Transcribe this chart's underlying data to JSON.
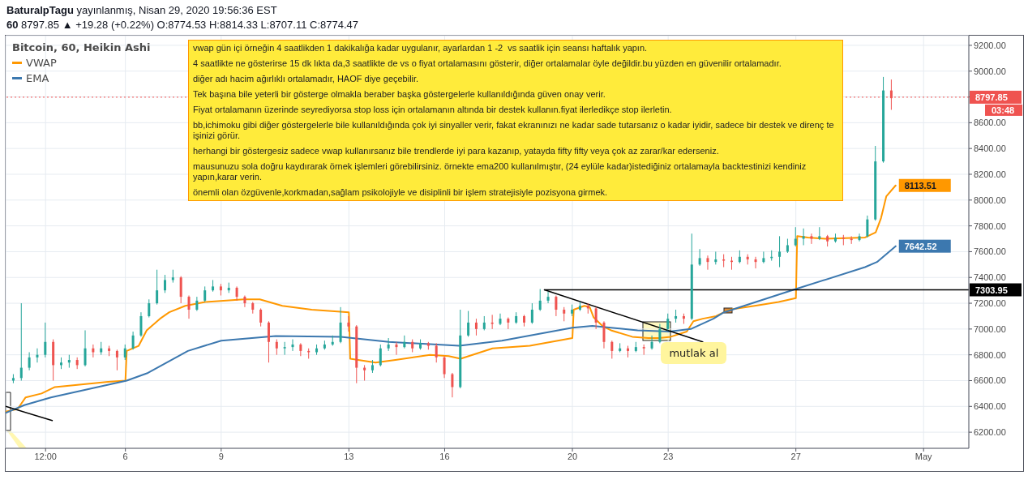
{
  "chart_data": {
    "type": "candlestick",
    "title": "Bitcoin, 60, Heikin Ashi",
    "annotations": [
      "BaturalpTagu yayınlanmış, Nisan 29, 2020 19:56:36 EST",
      "60 8797.85 ▲ +19.28 (+0.22%) O:8774.53 H:8814.33 L:8707.11 C:8774.47",
      "vwap gün içi örneğin 4 saatlikden 1 dakikalığa kadar uygulanır, ayarlardan 1 -2  vs saatlik için seansı haftalık yapın.",
      "4 saatlikte ne gösterirse 15 dk lıkta da,3 saatlikte de vs o fiyat ortalamasını gösterir, diğer ortalamalar öyle değildir.bu yüzden en güvenilir ortalamadır.",
      "diğer adı hacim ağırlıklı ortalamadır, HAOF diye geçebilir.",
      "Tek başına bile yeterli bir gösterge olmakla beraber başka göstergelerle kullanıldığında güven onay verir.",
      "Fiyat ortalamanın üzerinde seyrediyorsa stop loss için ortalamanın altında bir destek kullanın.fiyat ilerledikçe stop ilerletin.",
      "bb,ichimoku gibi diğer göstergelerle bile kullanıldığında çok iyi sinyaller verir, fakat ekranınızı ne kadar sade tutarsanız o kadar iyidir, sadece bir destek ve direnç te işinizi görür.",
      "herhangi bir göstergesiz sadece vwap kullanırsanız bile trendlerde iyi para kazanıp, yatayda fifty fifty veya çok az zarar/kar ederseniz.",
      "mausunuzu sola doğru kaydırarak örnek işlemleri görebilirsiniz. örnekte ema200 kullanılmıştır, (24 eylüle kadar)istediğiniz ortalamayla backtestinizi kendiniz yapın,karar verin.",
      "önemli olan özgüvenle,korkmadan,sağlam psikolojiyle ve disiplinli bir işlem stratejisiyle pozisyona girmek.",
      "03:48",
      {
        "text": "mutlak al",
        "x": "2020-04-23T02:00",
        "y": 6910
      }
    ],
    "x": [
      "2020-04-02T12:00",
      "2020-04-02T18:00",
      "2020-04-03T00:00",
      "2020-04-03T06:00",
      "2020-04-03T12:00",
      "2020-04-03T18:00",
      "2020-04-04T00:00",
      "2020-04-04T06:00",
      "2020-04-04T12:00",
      "2020-04-04T18:00",
      "2020-04-05T00:00",
      "2020-04-05T06:00",
      "2020-04-05T12:00",
      "2020-04-05T18:00",
      "2020-04-06T00:00",
      "2020-04-06T06:00",
      "2020-04-06T12:00",
      "2020-04-06T18:00",
      "2020-04-07T00:00",
      "2020-04-07T06:00",
      "2020-04-07T12:00",
      "2020-04-07T18:00",
      "2020-04-08T00:00",
      "2020-04-08T06:00",
      "2020-04-08T12:00",
      "2020-04-08T18:00",
      "2020-04-09T00:00",
      "2020-04-09T06:00",
      "2020-04-09T12:00",
      "2020-04-09T18:00",
      "2020-04-10T00:00",
      "2020-04-10T06:00",
      "2020-04-10T12:00",
      "2020-04-10T18:00",
      "2020-04-11T00:00",
      "2020-04-11T06:00",
      "2020-04-11T12:00",
      "2020-04-11T18:00",
      "2020-04-12T00:00",
      "2020-04-12T06:00",
      "2020-04-12T12:00",
      "2020-04-12T18:00",
      "2020-04-13T00:00",
      "2020-04-13T06:00",
      "2020-04-13T12:00",
      "2020-04-13T18:00",
      "2020-04-14T00:00",
      "2020-04-14T06:00",
      "2020-04-14T12:00",
      "2020-04-14T18:00",
      "2020-04-15T00:00",
      "2020-04-15T06:00",
      "2020-04-15T12:00",
      "2020-04-15T18:00",
      "2020-04-16T00:00",
      "2020-04-16T06:00",
      "2020-04-16T12:00",
      "2020-04-16T18:00",
      "2020-04-17T00:00",
      "2020-04-17T06:00",
      "2020-04-17T12:00",
      "2020-04-17T18:00",
      "2020-04-18T00:00",
      "2020-04-18T06:00",
      "2020-04-18T12:00",
      "2020-04-18T18:00",
      "2020-04-19T00:00",
      "2020-04-19T06:00",
      "2020-04-19T12:00",
      "2020-04-19T18:00",
      "2020-04-20T00:00",
      "2020-04-20T06:00",
      "2020-04-20T12:00",
      "2020-04-20T18:00",
      "2020-04-21T00:00",
      "2020-04-21T06:00",
      "2020-04-21T12:00",
      "2020-04-21T18:00",
      "2020-04-22T00:00",
      "2020-04-22T06:00",
      "2020-04-22T12:00",
      "2020-04-22T18:00",
      "2020-04-23T00:00",
      "2020-04-23T06:00",
      "2020-04-23T12:00",
      "2020-04-23T18:00",
      "2020-04-24T00:00",
      "2020-04-24T06:00",
      "2020-04-24T12:00",
      "2020-04-24T18:00",
      "2020-04-25T00:00",
      "2020-04-25T06:00",
      "2020-04-25T12:00",
      "2020-04-25T18:00",
      "2020-04-26T00:00",
      "2020-04-26T06:00",
      "2020-04-26T12:00",
      "2020-04-26T18:00",
      "2020-04-27T00:00",
      "2020-04-27T06:00",
      "2020-04-27T12:00",
      "2020-04-27T18:00",
      "2020-04-28T00:00",
      "2020-04-28T06:00",
      "2020-04-28T12:00",
      "2020-04-28T18:00",
      "2020-04-29T00:00",
      "2020-04-29T06:00",
      "2020-04-29T12:00",
      "2020-04-29T18:00",
      "2020-04-30T00:00"
    ],
    "ohlc": [
      [
        6600,
        6650,
        6580,
        6620
      ],
      [
        6620,
        7200,
        6600,
        6700
      ],
      [
        6700,
        6820,
        6680,
        6780
      ],
      [
        6780,
        6850,
        6740,
        6800
      ],
      [
        6800,
        7050,
        6780,
        6900
      ],
      [
        6900,
        6920,
        6600,
        6720
      ],
      [
        6720,
        6780,
        6690,
        6740
      ],
      [
        6740,
        6800,
        6700,
        6760
      ],
      [
        6760,
        6780,
        6690,
        6720
      ],
      [
        6720,
        6990,
        6710,
        6850
      ],
      [
        6850,
        6880,
        6780,
        6820
      ],
      [
        6820,
        6900,
        6800,
        6850
      ],
      [
        6850,
        6870,
        6790,
        6830
      ],
      [
        6830,
        6840,
        6680,
        6780
      ],
      [
        6780,
        6880,
        6760,
        6850
      ],
      [
        6850,
        6980,
        6840,
        6950
      ],
      [
        6950,
        7130,
        6940,
        7100
      ],
      [
        7100,
        7230,
        7090,
        7200
      ],
      [
        7200,
        7460,
        7190,
        7300
      ],
      [
        7300,
        7420,
        7280,
        7380
      ],
      [
        7380,
        7460,
        7360,
        7400
      ],
      [
        7400,
        7410,
        7200,
        7250
      ],
      [
        7250,
        7260,
        7080,
        7150
      ],
      [
        7150,
        7250,
        7140,
        7220
      ],
      [
        7220,
        7330,
        7210,
        7300
      ],
      [
        7300,
        7380,
        7290,
        7330
      ],
      [
        7330,
        7350,
        7260,
        7300
      ],
      [
        7300,
        7360,
        7280,
        7320
      ],
      [
        7320,
        7330,
        7220,
        7250
      ],
      [
        7250,
        7260,
        7170,
        7200
      ],
      [
        7200,
        7210,
        7120,
        7150
      ],
      [
        7150,
        7160,
        7020,
        7050
      ],
      [
        7050,
        7060,
        6740,
        6900
      ],
      [
        6900,
        6920,
        6800,
        6850
      ],
      [
        6850,
        6900,
        6800,
        6860
      ],
      [
        6860,
        6920,
        6830,
        6880
      ],
      [
        6880,
        6890,
        6790,
        6830
      ],
      [
        6830,
        6850,
        6770,
        6820
      ],
      [
        6820,
        6880,
        6800,
        6850
      ],
      [
        6850,
        6910,
        6840,
        6880
      ],
      [
        6880,
        6950,
        6870,
        6900
      ],
      [
        6900,
        7170,
        6890,
        7050
      ],
      [
        7050,
        7100,
        6980,
        7020
      ],
      [
        7020,
        7030,
        6580,
        6700
      ],
      [
        6700,
        6720,
        6600,
        6680
      ],
      [
        6680,
        6760,
        6660,
        6720
      ],
      [
        6720,
        6880,
        6710,
        6850
      ],
      [
        6850,
        6930,
        6830,
        6880
      ],
      [
        6880,
        6900,
        6800,
        6860
      ],
      [
        6860,
        6950,
        6850,
        6900
      ],
      [
        6900,
        6920,
        6820,
        6850
      ],
      [
        6850,
        6920,
        6840,
        6890
      ],
      [
        6890,
        6900,
        6840,
        6870
      ],
      [
        6870,
        6890,
        6740,
        6780
      ],
      [
        6780,
        6790,
        6620,
        6650
      ],
      [
        6650,
        6660,
        6470,
        6550
      ],
      [
        6550,
        7150,
        6540,
        6950
      ],
      [
        6950,
        7140,
        6940,
        7050
      ],
      [
        7050,
        7080,
        6950,
        7000
      ],
      [
        7000,
        7100,
        6990,
        7050
      ],
      [
        7050,
        7110,
        7000,
        7040
      ],
      [
        7040,
        7120,
        7030,
        7080
      ],
      [
        7080,
        7090,
        7000,
        7050
      ],
      [
        7050,
        7130,
        7040,
        7100
      ],
      [
        7100,
        7110,
        7020,
        7050
      ],
      [
        7050,
        7200,
        7040,
        7150
      ],
      [
        7150,
        7310,
        7140,
        7220
      ],
      [
        7220,
        7290,
        7200,
        7250
      ],
      [
        7250,
        7260,
        7100,
        7150
      ],
      [
        7150,
        7170,
        7060,
        7120
      ],
      [
        7120,
        7190,
        7100,
        7150
      ],
      [
        7150,
        7210,
        7140,
        7180
      ],
      [
        7180,
        7200,
        7120,
        7160
      ],
      [
        7160,
        7170,
        7000,
        7050
      ],
      [
        7050,
        7060,
        6850,
        6900
      ],
      [
        6900,
        6910,
        6770,
        6830
      ],
      [
        6830,
        6890,
        6820,
        6850
      ],
      [
        6850,
        6870,
        6780,
        6830
      ],
      [
        6830,
        6900,
        6820,
        6860
      ],
      [
        6860,
        6880,
        6800,
        6850
      ],
      [
        6850,
        6950,
        6840,
        6900
      ],
      [
        6900,
        7040,
        6890,
        7000
      ],
      [
        7000,
        7120,
        6990,
        7080
      ],
      [
        7080,
        7150,
        7050,
        7100
      ],
      [
        7100,
        7120,
        7040,
        7080
      ],
      [
        7080,
        7740,
        7070,
        7500
      ],
      [
        7500,
        7620,
        7490,
        7550
      ],
      [
        7550,
        7570,
        7460,
        7520
      ],
      [
        7520,
        7600,
        7500,
        7540
      ],
      [
        7540,
        7580,
        7480,
        7530
      ],
      [
        7530,
        7560,
        7460,
        7520
      ],
      [
        7520,
        7610,
        7510,
        7560
      ],
      [
        7560,
        7580,
        7500,
        7540
      ],
      [
        7540,
        7560,
        7470,
        7520
      ],
      [
        7520,
        7600,
        7510,
        7550
      ],
      [
        7550,
        7610,
        7530,
        7560
      ],
      [
        7560,
        7720,
        7480,
        7600
      ],
      [
        7600,
        7700,
        7590,
        7650
      ],
      [
        7650,
        7790,
        7640,
        7700
      ],
      [
        7700,
        7780,
        7650,
        7720
      ],
      [
        7720,
        7740,
        7660,
        7700
      ],
      [
        7700,
        7790,
        7690,
        7720
      ],
      [
        7720,
        7730,
        7640,
        7680
      ],
      [
        7680,
        7740,
        7670,
        7710
      ],
      [
        7710,
        7730,
        7650,
        7700
      ],
      [
        7700,
        7720,
        7660,
        7690
      ],
      [
        7690,
        7740,
        7680,
        7720
      ],
      [
        7720,
        7880,
        7710,
        7850
      ],
      [
        7850,
        8420,
        7840,
        8300
      ],
      [
        8300,
        8955,
        8290,
        8850
      ],
      [
        8850,
        8935,
        8700,
        8790
      ]
    ],
    "colors": [
      "#26a69a",
      "#26a69a",
      "#26a69a",
      "#26a69a",
      "#26a69a",
      "#ef5350",
      "#26a69a",
      "#26a69a",
      "#ef5350",
      "#26a69a",
      "#ef5350",
      "#26a69a",
      "#ef5350",
      "#ef5350",
      "#26a69a",
      "#26a69a",
      "#26a69a",
      "#26a69a",
      "#26a69a",
      "#26a69a",
      "#26a69a",
      "#ef5350",
      "#ef5350",
      "#26a69a",
      "#26a69a",
      "#26a69a",
      "#ef5350",
      "#26a69a",
      "#ef5350",
      "#ef5350",
      "#ef5350",
      "#ef5350",
      "#ef5350",
      "#ef5350",
      "#26a69a",
      "#26a69a",
      "#ef5350",
      "#ef5350",
      "#26a69a",
      "#26a69a",
      "#26a69a",
      "#26a69a",
      "#ef5350",
      "#ef5350",
      "#ef5350",
      "#26a69a",
      "#26a69a",
      "#26a69a",
      "#ef5350",
      "#26a69a",
      "#ef5350",
      "#26a69a",
      "#ef5350",
      "#ef5350",
      "#ef5350",
      "#ef5350",
      "#26a69a",
      "#26a69a",
      "#ef5350",
      "#26a69a",
      "#ef5350",
      "#26a69a",
      "#ef5350",
      "#26a69a",
      "#ef5350",
      "#26a69a",
      "#26a69a",
      "#26a69a",
      "#ef5350",
      "#ef5350",
      "#26a69a",
      "#26a69a",
      "#ef5350",
      "#ef5350",
      "#ef5350",
      "#ef5350",
      "#26a69a",
      "#ef5350",
      "#26a69a",
      "#ef5350",
      "#26a69a",
      "#26a69a",
      "#26a69a",
      "#26a69a",
      "#ef5350",
      "#26a69a",
      "#26a69a",
      "#ef5350",
      "#26a69a",
      "#ef5350",
      "#ef5350",
      "#26a69a",
      "#ef5350",
      "#ef5350",
      "#26a69a",
      "#26a69a",
      "#26a69a",
      "#26a69a",
      "#26a69a",
      "#26a69a",
      "#ef5350",
      "#26a69a",
      "#ef5350",
      "#26a69a",
      "#ef5350",
      "#ef5350",
      "#26a69a",
      "#26a69a",
      "#26a69a",
      "#26a69a",
      "#ef5350"
    ],
    "series": [
      {
        "name": "VWAP",
        "type": "line",
        "color": "#ff9800",
        "x": [
          "2020-04-02T06:00",
          "2020-04-02T15:00",
          "2020-04-02T21:00",
          "2020-04-03T09:00",
          "2020-04-03T19:00",
          "2020-04-04T15:00",
          "2020-04-05T11:00",
          "2020-04-06T00:00",
          "2020-04-06T01:00",
          "2020-04-06T10:00",
          "2020-04-06T16:00",
          "2020-04-07T02:00",
          "2020-04-07T09:00",
          "2020-04-07T21:00",
          "2020-04-08T12:00",
          "2020-04-09T17:00",
          "2020-04-10T05:00",
          "2020-04-10T22:00",
          "2020-04-11T20:00",
          "2020-04-13T00:00",
          "2020-04-13T01:00",
          "2020-04-13T20:00",
          "2020-04-14T11:00",
          "2020-04-15T13:00",
          "2020-04-16T03:00",
          "2020-04-16T12:00",
          "2020-04-17T12:00",
          "2020-04-18T16:00",
          "2020-04-20T00:00",
          "2020-04-20T01:00",
          "2020-04-20T09:00",
          "2020-04-20T13:00",
          "2020-04-20T16:00",
          "2020-04-20T23:00",
          "2020-04-21T05:00",
          "2020-04-21T21:00",
          "2020-04-22T09:00",
          "2020-04-22T17:00",
          "2020-04-23T02:00",
          "2020-04-23T14:00",
          "2020-04-23T19:00",
          "2020-04-24T02:00",
          "2020-04-24T12:00",
          "2020-04-24T22:00",
          "2020-04-25T17:00",
          "2020-04-26T11:00",
          "2020-04-27T00:00",
          "2020-04-27T01:00",
          "2020-04-27T09:00",
          "2020-04-27T22:00",
          "2020-04-29T04:00",
          "2020-04-29T12:00",
          "2020-04-29T16:00",
          "2020-04-29T20:00",
          "2020-04-30T03:00"
        ],
        "values": [
          6360,
          6380,
          6470,
          6500,
          6550,
          6570,
          6590,
          6600,
          6830,
          6870,
          6990,
          7080,
          7130,
          7180,
          7210,
          7230,
          7230,
          7180,
          7150,
          7130,
          6770,
          6740,
          6760,
          6800,
          6790,
          6770,
          6850,
          6870,
          6930,
          7150,
          7180,
          7170,
          7090,
          7020,
          6990,
          6940,
          6930,
          6930,
          6940,
          6980,
          7060,
          7080,
          7100,
          7150,
          7180,
          7210,
          7240,
          7720,
          7710,
          7700,
          7710,
          7750,
          7860,
          8030,
          8113.51
        ],
        "value_labels": [
          null,
          null,
          null,
          null,
          null,
          null,
          null,
          null,
          null,
          null,
          null,
          null,
          null,
          null,
          null,
          null,
          null,
          null,
          null,
          null,
          null,
          null,
          null,
          null,
          null,
          null,
          null,
          null,
          null,
          null,
          null,
          null,
          null,
          null,
          null,
          null,
          null,
          null,
          null,
          null,
          null,
          null,
          null,
          null,
          null,
          null,
          null,
          null,
          null,
          null,
          null,
          null,
          null,
          null,
          "8113.51"
        ]
      },
      {
        "name": "EMA",
        "type": "line",
        "color": "#3c78af",
        "x": [
          "2020-04-02T06:00",
          "2020-04-02T20:00",
          "2020-04-03T16:00",
          "2020-04-04T14:00",
          "2020-04-06T01:00",
          "2020-04-06T17:00",
          "2020-04-07T23:00",
          "2020-04-09T00:00",
          "2020-04-10T17:00",
          "2020-04-12T18:00",
          "2020-04-14T06:00",
          "2020-04-16T11:00",
          "2020-04-17T19:00",
          "2020-04-20T00:00",
          "2020-04-20T15:00",
          "2020-04-22T01:00",
          "2020-04-23T01:00",
          "2020-04-23T17:00",
          "2020-04-24T10:00",
          "2020-04-24T18:00",
          "2020-04-27T00:00",
          "2020-04-29T04:00",
          "2020-04-29T13:00",
          "2020-04-30T03:00"
        ],
        "values": [
          6350,
          6410,
          6470,
          6520,
          6600,
          6660,
          6830,
          6910,
          6945,
          6940,
          6900,
          6870,
          6910,
          7010,
          7025,
          6990,
          6980,
          7000,
          7080,
          7130,
          7310,
          7480,
          7520,
          7642.52
        ],
        "value_labels": [
          null,
          null,
          null,
          null,
          null,
          null,
          null,
          null,
          null,
          null,
          null,
          null,
          null,
          null,
          null,
          null,
          null,
          null,
          null,
          null,
          null,
          null,
          null,
          "7642.52"
        ]
      },
      {
        "type": "line",
        "color": "#000000",
        "x": [
          "2020-04-19T03:00",
          "2020-05-02T10:00"
        ],
        "values": [
          7303.95,
          7303.95
        ],
        "value_labels": [
          null,
          "7303.95"
        ]
      },
      {
        "type": "line",
        "color": "#000000",
        "x": [
          "2020-04-19T03:00",
          "2020-04-24T02:00"
        ],
        "values": [
          7303.95,
          6900
        ]
      },
      {
        "type": "line",
        "color": "#000000",
        "x": [
          "2020-04-02T06:00",
          "2020-04-03T17:00"
        ],
        "values": [
          6400,
          6290
        ]
      }
    ],
    "ref_lines": [
      {
        "axis": "y",
        "value": 8797.85,
        "label": "8797.85",
        "color": "#ef5350",
        "line_style": "dotted"
      }
    ],
    "xlim": [
      "2020-04-02T06:00",
      "2020-05-02T10:00"
    ],
    "xticks": [
      {
        "value": "2020-04-03T12:00",
        "label": "12:00"
      },
      {
        "value": "2020-04-06",
        "label": "6"
      },
      {
        "value": "2020-04-09",
        "label": "9"
      },
      {
        "value": "2020-04-13",
        "label": "13"
      },
      {
        "value": "2020-04-16",
        "label": "16"
      },
      {
        "value": "2020-04-20",
        "label": "20"
      },
      {
        "value": "2020-04-23",
        "label": "23"
      },
      {
        "value": "2020-04-27",
        "label": "27"
      },
      {
        "value": "2020-05-01",
        "label": "May"
      }
    ],
    "ylim": [
      6075,
      9275
    ],
    "yticks": [
      {
        "value": 6200,
        "label": "6200.00"
      },
      {
        "value": 6400,
        "label": "6400.00"
      },
      {
        "value": 6600,
        "label": "6600.00"
      },
      {
        "value": 6800,
        "label": "6800.00"
      },
      {
        "value": 7000,
        "label": "7000.00"
      },
      {
        "value": 7200,
        "label": "7200.00"
      },
      {
        "value": 7400,
        "label": "7400.00"
      },
      {
        "value": 7600,
        "label": "7600.00"
      },
      {
        "value": 7800,
        "label": "7800.00"
      },
      {
        "value": 8000,
        "label": "8000.00"
      },
      {
        "value": 8200,
        "label": "8200.00"
      },
      {
        "value": 8400,
        "label": "8400.00"
      },
      {
        "value": 8600,
        "label": "8600.00"
      },
      {
        "value": 8800,
        "label": null
      },
      {
        "value": 9000,
        "label": "9000.00"
      },
      {
        "value": 9200,
        "label": "9200.00"
      }
    ],
    "grid": true,
    "legend": "top left"
  }
}
